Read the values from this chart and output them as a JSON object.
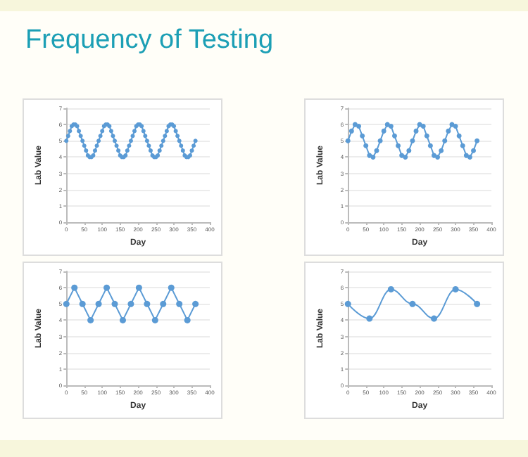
{
  "chart_data": [
    {
      "type": "line",
      "title": "Frequency of Testing",
      "xlabel": "Day",
      "ylabel": "Lab Value",
      "xlim": [
        0,
        400
      ],
      "xticks": [
        0,
        50,
        100,
        150,
        200,
        250,
        300,
        350,
        400
      ],
      "ylim": [
        0,
        7
      ],
      "yticks": [
        0,
        1,
        2,
        3,
        4,
        5,
        6,
        7
      ],
      "grid": "y",
      "marker": "circle",
      "line_style": "solid",
      "x": [
        0,
        5,
        10,
        15,
        20,
        25,
        30,
        35,
        40,
        45,
        50,
        55,
        60,
        65,
        70,
        75,
        80,
        85,
        90,
        95,
        100,
        105,
        110,
        115,
        120,
        125,
        130,
        135,
        140,
        145,
        150,
        155,
        160,
        165,
        170,
        175,
        180,
        185,
        190,
        195,
        200,
        205,
        210,
        215,
        220,
        225,
        230,
        235,
        240,
        245,
        250,
        255,
        260,
        265,
        270,
        275,
        280,
        285,
        290,
        295,
        300,
        305,
        310,
        315,
        320,
        325,
        330,
        335,
        340,
        345,
        350,
        355,
        360
      ],
      "series": [
        {
          "color": "#5b9bd5",
          "values": [
            5,
            5.3,
            5.6,
            5.9,
            6,
            6,
            5.9,
            5.6,
            5.3,
            5,
            4.7,
            4.4,
            4.1,
            4,
            4,
            4.1,
            4.4,
            4.7,
            5,
            5.3,
            5.6,
            5.9,
            6,
            6,
            5.9,
            5.6,
            5.3,
            5,
            4.7,
            4.4,
            4.1,
            4,
            4,
            4.1,
            4.4,
            4.7,
            5,
            5.3,
            5.6,
            5.9,
            6,
            6,
            5.9,
            5.6,
            5.3,
            5,
            4.7,
            4.4,
            4.1,
            4,
            4,
            4.1,
            4.4,
            4.7,
            5,
            5.3,
            5.6,
            5.9,
            6,
            6,
            5.9,
            5.6,
            5.3,
            5,
            4.7,
            4.4,
            4.1,
            4,
            4,
            4.1,
            4.4,
            4.7,
            5
          ]
        }
      ]
    },
    {
      "type": "line",
      "xlabel": "Day",
      "ylabel": "Lab Value",
      "xlim": [
        0,
        400
      ],
      "xticks": [
        0,
        50,
        100,
        150,
        200,
        250,
        300,
        350,
        400
      ],
      "ylim": [
        0,
        7
      ],
      "yticks": [
        0,
        1,
        2,
        3,
        4,
        5,
        6,
        7
      ],
      "grid": "y",
      "marker": "circle",
      "line_style": "solid",
      "x": [
        0,
        10,
        20,
        30,
        40,
        50,
        60,
        70,
        80,
        90,
        100,
        110,
        120,
        130,
        140,
        150,
        160,
        170,
        180,
        190,
        200,
        210,
        220,
        230,
        240,
        250,
        260,
        270,
        280,
        290,
        300,
        310,
        320,
        330,
        340,
        350,
        360
      ],
      "series": [
        {
          "color": "#5b9bd5",
          "values": [
            5,
            5.6,
            6,
            5.9,
            5.3,
            4.7,
            4.1,
            4,
            4.4,
            5,
            5.6,
            6,
            5.9,
            5.3,
            4.7,
            4.1,
            4,
            4.4,
            5,
            5.6,
            6,
            5.9,
            5.3,
            4.7,
            4.1,
            4,
            4.4,
            5,
            5.6,
            6,
            5.9,
            5.3,
            4.7,
            4.1,
            4,
            4.4,
            5
          ]
        }
      ]
    },
    {
      "type": "line",
      "xlabel": "Day",
      "ylabel": "Lab Value",
      "xlim": [
        0,
        400
      ],
      "xticks": [
        0,
        50,
        100,
        150,
        200,
        250,
        300,
        350,
        400
      ],
      "ylim": [
        0,
        7
      ],
      "yticks": [
        0,
        1,
        2,
        3,
        4,
        5,
        6,
        7
      ],
      "grid": "y",
      "marker": "circle",
      "line_style": "solid",
      "x": [
        0,
        22.5,
        45,
        67.5,
        90,
        112.5,
        135,
        157.5,
        180,
        202.5,
        225,
        247.5,
        270,
        292.5,
        315,
        337.5,
        360
      ],
      "series": [
        {
          "color": "#5b9bd5",
          "values": [
            5,
            6,
            5,
            4,
            5,
            6,
            5,
            4,
            5,
            6,
            5,
            4,
            5,
            6,
            5,
            4,
            5
          ]
        }
      ]
    },
    {
      "type": "line",
      "xlabel": "Day",
      "ylabel": "Lab Value",
      "xlim": [
        0,
        400
      ],
      "xticks": [
        0,
        50,
        100,
        150,
        200,
        250,
        300,
        350,
        400
      ],
      "ylim": [
        0,
        7
      ],
      "yticks": [
        0,
        1,
        2,
        3,
        4,
        5,
        6,
        7
      ],
      "grid": "y",
      "marker": "circle",
      "line_style": "solid",
      "x": [
        0,
        60,
        120,
        180,
        240,
        300,
        360
      ],
      "series": [
        {
          "color": "#5b9bd5",
          "values": [
            5,
            4.1,
            5.9,
            5,
            4.1,
            5.9,
            5
          ]
        }
      ]
    }
  ]
}
